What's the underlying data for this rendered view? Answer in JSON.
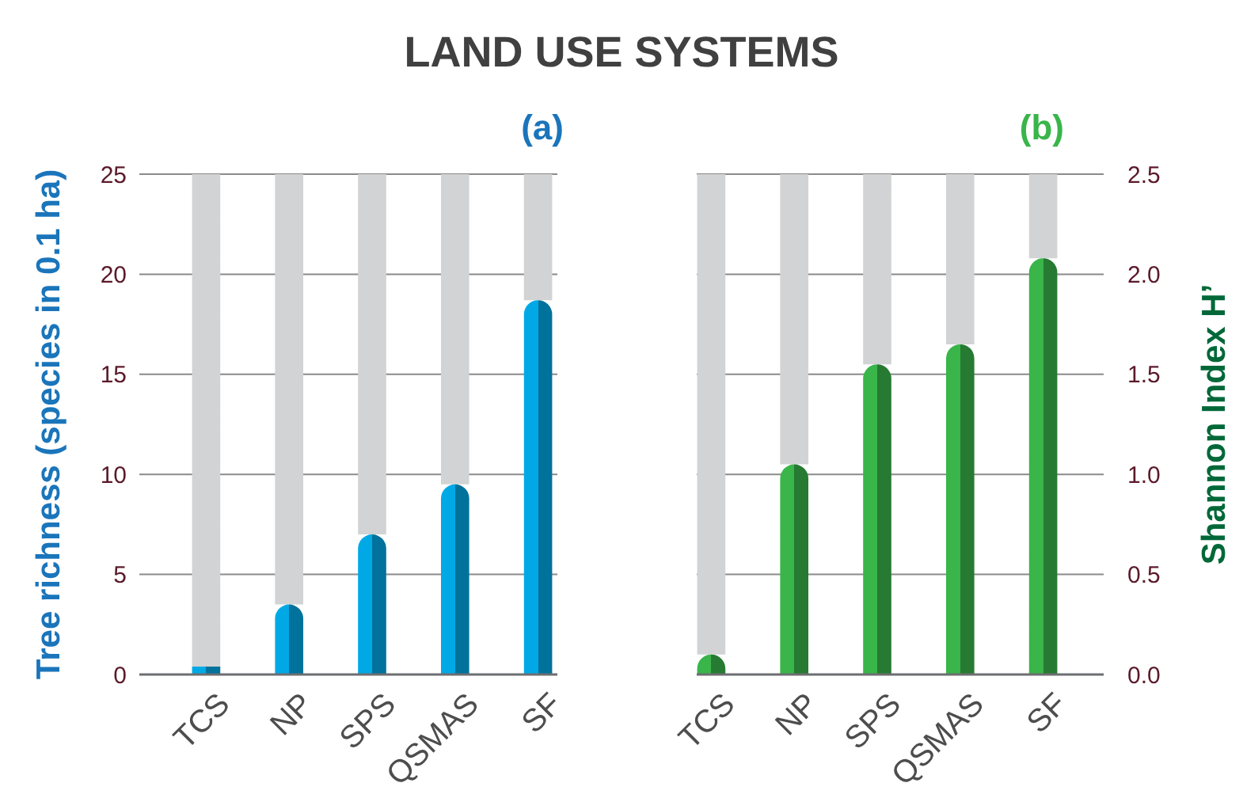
{
  "chart_data": [
    {
      "type": "bar",
      "title": "LAND USE SYSTEMS",
      "subtitle": "(a)",
      "ylabel": "Tree richness (species in 0.1 ha)",
      "categories": [
        "TCS",
        "NP",
        "SPS",
        "QSMAS",
        "SF"
      ],
      "stacked": true,
      "grid": "y",
      "ylim": [
        0,
        25
      ],
      "yticks": [
        0,
        5,
        10,
        15,
        20,
        25
      ],
      "series": [
        {
          "color": "#00a9e6",
          "values": [
            0.4,
            3.5,
            7,
            9.5,
            18.7
          ]
        },
        {
          "color": "#d1d3d4",
          "values": [
            24.6,
            21.5,
            18,
            15.5,
            6.3
          ]
        }
      ]
    },
    {
      "type": "bar",
      "subtitle": "(b)",
      "y2label": "Shannon Index H’",
      "categories": [
        "TCS",
        "NP",
        "SPS",
        "QSMAS",
        "SF"
      ],
      "stacked": true,
      "grid": "y",
      "y2lim": [
        0,
        2.5
      ],
      "y2ticks": [
        {
          "value": 0,
          "label": "0.0"
        },
        {
          "value": 0.5,
          "label": "0.5"
        },
        {
          "value": 1,
          "label": "1.0"
        },
        {
          "value": 1.5,
          "label": "1.5"
        },
        {
          "value": 2,
          "label": "2.0"
        },
        {
          "value": 2.5,
          "label": "2.5"
        }
      ],
      "series": [
        {
          "color": "#39b54a",
          "axis": "y2",
          "values": [
            0.1,
            1.05,
            1.55,
            1.65,
            2.08
          ]
        },
        {
          "color": "#d1d3d4",
          "axis": "y2",
          "values": [
            2.4,
            1.45,
            0.95,
            0.85,
            0.42
          ]
        }
      ]
    }
  ]
}
